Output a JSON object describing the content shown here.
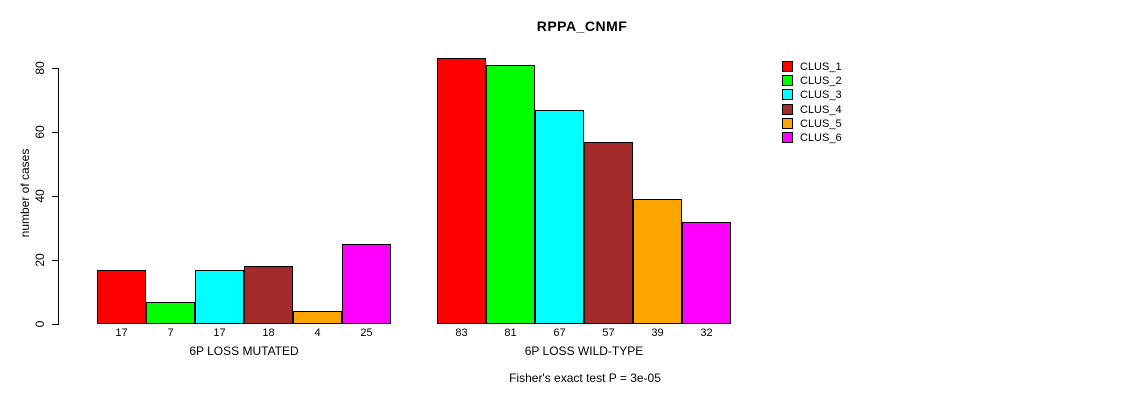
{
  "chart_data": {
    "type": "bar",
    "title": "RPPA_CNMF",
    "ylabel": "number of cases",
    "xlabel": "",
    "annotation": "Fisher's exact test P = 3e-05",
    "ylim": [
      0,
      80
    ],
    "yticks": [
      0,
      20,
      40,
      60,
      80
    ],
    "grid": false,
    "legend_position": "top-right",
    "categories": [
      "6P LOSS MUTATED",
      "6P LOSS WILD-TYPE"
    ],
    "series": [
      {
        "name": "CLUS_1",
        "color": "#FF0000",
        "values": [
          17,
          83
        ]
      },
      {
        "name": "CLUS_2",
        "color": "#00FF00",
        "values": [
          7,
          81
        ]
      },
      {
        "name": "CLUS_3",
        "color": "#00FFFF",
        "values": [
          17,
          67
        ]
      },
      {
        "name": "CLUS_4",
        "color": "#A52A2A",
        "values": [
          18,
          57
        ]
      },
      {
        "name": "CLUS_5",
        "color": "#FFA500",
        "values": [
          4,
          39
        ]
      },
      {
        "name": "CLUS_6",
        "color": "#FF00FF",
        "values": [
          25,
          32
        ]
      }
    ],
    "bar_value_labels": {
      "6P LOSS MUTATED": [
        17,
        7,
        17,
        18,
        4,
        25
      ],
      "6P LOSS WILD-TYPE": [
        83,
        81,
        67,
        57,
        39,
        32
      ]
    }
  }
}
